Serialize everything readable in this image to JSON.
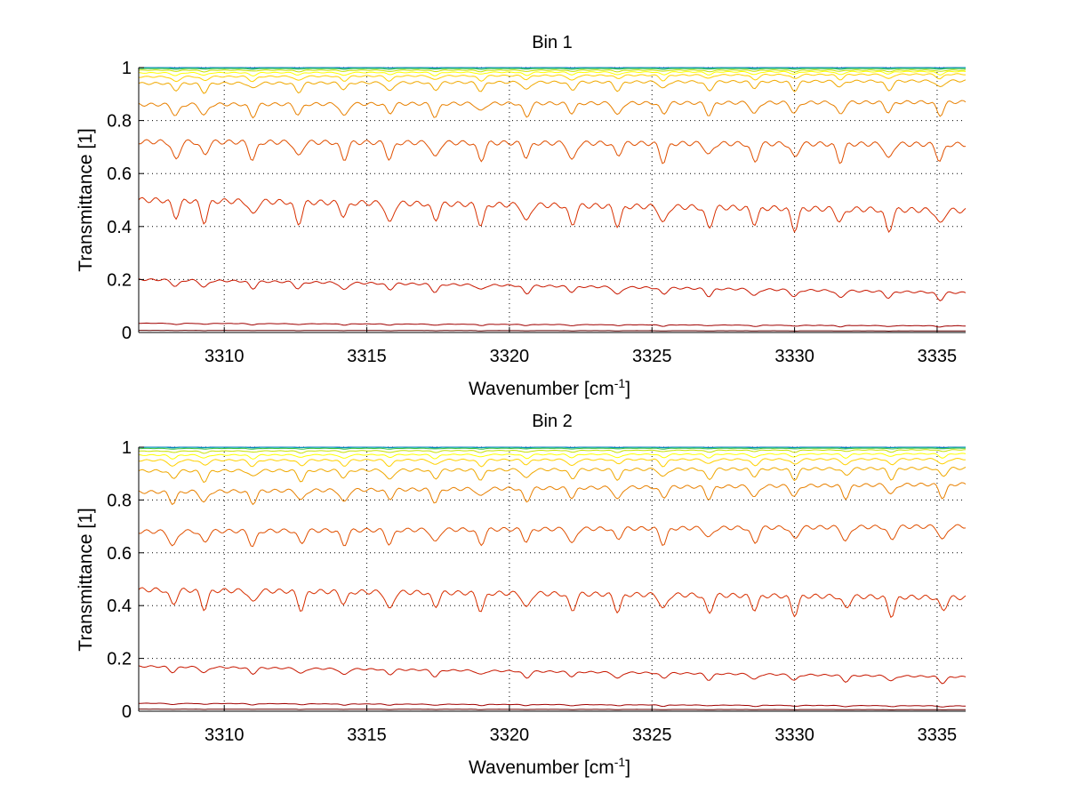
{
  "chart_data": [
    {
      "type": "line",
      "title": "Bin 1",
      "xlabel": "Wavenumber [cm",
      "xlabel_sup": "-1",
      "xlabel_end": "]",
      "ylabel": "Transmittance [1]",
      "xlim": [
        3307,
        3336
      ],
      "ylim": [
        0,
        1
      ],
      "xticks": [
        3310,
        3315,
        3320,
        3325,
        3330,
        3335
      ],
      "xtick_labels": [
        "3310",
        "3315",
        "3320",
        "3325",
        "3330",
        "3335"
      ],
      "yticks": [
        0,
        0.2,
        0.4,
        0.6,
        0.8,
        1
      ],
      "ytick_labels": [
        "0",
        "0.2",
        "0.4",
        "0.6",
        "0.8",
        "1"
      ],
      "grid": true,
      "series_colors": [
        "#0050c8",
        "#00a0b0",
        "#40c040",
        "#c8e000",
        "#ffff00",
        "#ffd000",
        "#f0a800",
        "#e88000",
        "#e05000",
        "#d83000",
        "#c81800",
        "#a00000",
        "#600000"
      ],
      "series": [
        {
          "base_start": 1.0,
          "base_end": 1.0,
          "dip": 0.001
        },
        {
          "base_start": 0.999,
          "base_end": 0.999,
          "dip": 0.002
        },
        {
          "base_start": 0.996,
          "base_end": 0.996,
          "dip": 0.003
        },
        {
          "base_start": 0.99,
          "base_end": 0.99,
          "dip": 0.006
        },
        {
          "base_start": 0.98,
          "base_end": 0.985,
          "dip": 0.012
        },
        {
          "base_start": 0.965,
          "base_end": 0.975,
          "dip": 0.02
        },
        {
          "base_start": 0.94,
          "base_end": 0.95,
          "dip": 0.035
        },
        {
          "base_start": 0.86,
          "base_end": 0.87,
          "dip": 0.05
        },
        {
          "base_start": 0.72,
          "base_end": 0.71,
          "dip": 0.07
        },
        {
          "base_start": 0.5,
          "base_end": 0.46,
          "dip": 0.08
        },
        {
          "base_start": 0.2,
          "base_end": 0.15,
          "dip": 0.03
        },
        {
          "base_start": 0.035,
          "base_end": 0.025,
          "dip": 0.005
        },
        {
          "base_start": 0.008,
          "base_end": 0.006,
          "dip": 0.001
        }
      ],
      "dip_positions": [
        3308.3,
        3309.3,
        3311.0,
        3312.6,
        3314.2,
        3315.8,
        3317.4,
        3319.0,
        3320.6,
        3322.2,
        3323.8,
        3325.4,
        3327.0,
        3328.6,
        3330.0,
        3331.6,
        3333.3,
        3335.1
      ]
    },
    {
      "type": "line",
      "title": "Bin 2",
      "xlabel": "Wavenumber [cm",
      "xlabel_sup": "-1",
      "xlabel_end": "]",
      "ylabel": "Transmittance [1]",
      "xlim": [
        3307,
        3336
      ],
      "ylim": [
        0,
        1
      ],
      "xticks": [
        3310,
        3315,
        3320,
        3325,
        3330,
        3335
      ],
      "xtick_labels": [
        "3310",
        "3315",
        "3320",
        "3325",
        "3330",
        "3335"
      ],
      "yticks": [
        0,
        0.2,
        0.4,
        0.6,
        0.8,
        1
      ],
      "ytick_labels": [
        "0",
        "0.2",
        "0.4",
        "0.6",
        "0.8",
        "1"
      ],
      "grid": true,
      "series_colors": [
        "#0050c8",
        "#00a0b0",
        "#40c040",
        "#c8e000",
        "#ffff00",
        "#ffd000",
        "#f0a800",
        "#e88000",
        "#e05000",
        "#d83000",
        "#c81800",
        "#a00000",
        "#600000"
      ],
      "series": [
        {
          "base_start": 1.0,
          "base_end": 1.0,
          "dip": 0.001
        },
        {
          "base_start": 0.999,
          "base_end": 0.999,
          "dip": 0.002
        },
        {
          "base_start": 0.995,
          "base_end": 0.996,
          "dip": 0.003
        },
        {
          "base_start": 0.985,
          "base_end": 0.99,
          "dip": 0.008
        },
        {
          "base_start": 0.97,
          "base_end": 0.975,
          "dip": 0.015
        },
        {
          "base_start": 0.95,
          "base_end": 0.955,
          "dip": 0.025
        },
        {
          "base_start": 0.91,
          "base_end": 0.92,
          "dip": 0.04
        },
        {
          "base_start": 0.83,
          "base_end": 0.86,
          "dip": 0.05
        },
        {
          "base_start": 0.68,
          "base_end": 0.7,
          "dip": 0.06
        },
        {
          "base_start": 0.46,
          "base_end": 0.43,
          "dip": 0.07
        },
        {
          "base_start": 0.17,
          "base_end": 0.13,
          "dip": 0.025
        },
        {
          "base_start": 0.03,
          "base_end": 0.02,
          "dip": 0.005
        },
        {
          "base_start": 0.008,
          "base_end": 0.006,
          "dip": 0.001
        }
      ],
      "dip_positions": [
        3308.2,
        3309.3,
        3311.0,
        3312.7,
        3314.2,
        3315.8,
        3317.4,
        3319.0,
        3320.6,
        3322.2,
        3323.8,
        3325.4,
        3327.0,
        3328.6,
        3330.0,
        3331.8,
        3333.4,
        3335.2
      ]
    }
  ]
}
